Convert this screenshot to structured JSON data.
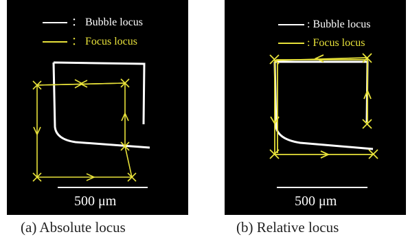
{
  "panels": {
    "a": {
      "legend": {
        "bubble": "： Bubble locus",
        "focus": "： Focus locus"
      },
      "scale_label": "500 μm",
      "caption": "(a) Absolute locus"
    },
    "b": {
      "legend": {
        "bubble": ": Bubble locus",
        "focus": ": Focus locus"
      },
      "scale_label": "500 μm",
      "caption": "(b) Relative locus"
    }
  },
  "colors": {
    "bubble": "#ffffff",
    "focus": "#e8e23a",
    "background": "#000000"
  }
}
